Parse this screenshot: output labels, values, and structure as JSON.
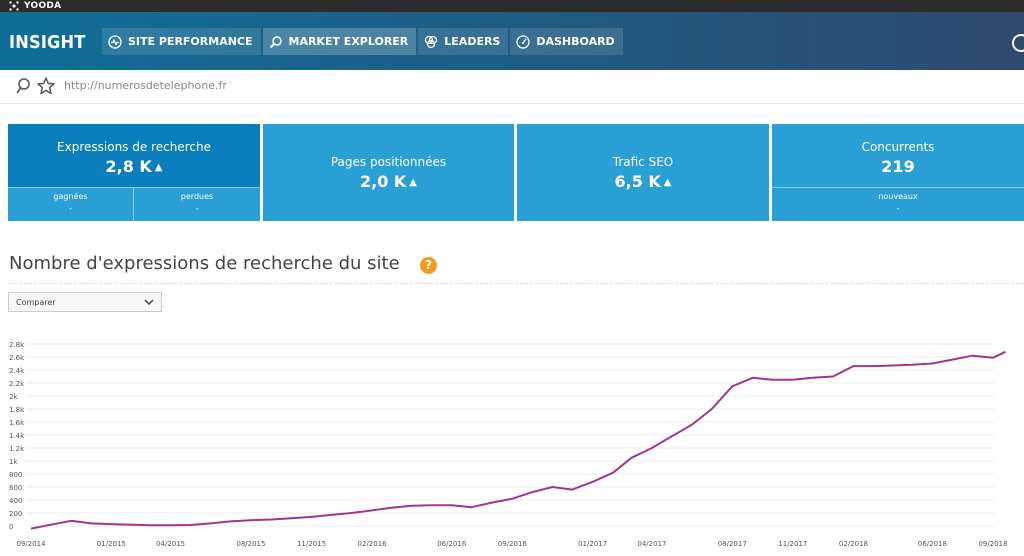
{
  "topbar": {
    "brand": "YOODA"
  },
  "header": {
    "app_title": "INSIGHT",
    "nav": [
      {
        "label": "SITE PERFORMANCE",
        "icon": "pulse-icon"
      },
      {
        "label": "MARKET EXPLORER",
        "icon": "magnifier-icon"
      },
      {
        "label": "LEADERS",
        "icon": "circles-icon"
      },
      {
        "label": "DASHBOARD",
        "icon": "gauge-icon"
      }
    ]
  },
  "urlbar": {
    "url": "http://numerosdetelephone.fr"
  },
  "kpis": [
    {
      "title": "Expressions de recherche",
      "value": "2,8 K",
      "sub": [
        {
          "label": "gagnées",
          "value": "-"
        },
        {
          "label": "perdues",
          "value": "-"
        }
      ]
    },
    {
      "title": "Pages positionnées",
      "value": "2,0 K"
    },
    {
      "title": "Trafic SEO",
      "value": "6,5 K"
    },
    {
      "title": "Concurrents",
      "value": "219",
      "sub": [
        {
          "label": "nouveaux",
          "value": "-"
        }
      ]
    }
  ],
  "trend_glyph": "▲",
  "section": {
    "title": "Nombre d'expressions de recherche du site",
    "help": "?"
  },
  "compare": {
    "label": "Comparer"
  },
  "colors": {
    "accent": "#2a9fd6",
    "accent_dark": "#0b7fbd",
    "line": "#a0368f",
    "help": "#f39c20"
  },
  "chart_data": {
    "type": "line",
    "y_ticks": [
      "0",
      "200",
      "400",
      "600",
      "800",
      "1k",
      "1.2k",
      "1.4k",
      "1.6k",
      "1.8k",
      "2k",
      "2.2k",
      "2.4k",
      "2.6k",
      "2.8k"
    ],
    "ylim": [
      0,
      2800
    ],
    "x_ticks": [
      "09/2014",
      "01/2015",
      "04/2015",
      "08/2015",
      "11/2015",
      "02/2016",
      "06/2016",
      "09/2016",
      "01/2017",
      "04/2017",
      "08/2017",
      "11/2017",
      "02/2018",
      "06/2018",
      "09/2018"
    ],
    "grid": true,
    "series": [
      {
        "x": [
          "2014-09-01",
          "2014-10-01",
          "2014-11-01",
          "2014-12-01",
          "2015-01-01",
          "2015-02-01",
          "2015-03-01",
          "2015-04-01",
          "2015-05-01",
          "2015-06-01",
          "2015-07-01",
          "2015-08-01",
          "2015-09-01",
          "2015-10-01",
          "2015-11-01",
          "2015-12-01",
          "2016-01-01",
          "2016-02-01",
          "2016-03-01",
          "2016-04-01",
          "2016-05-01",
          "2016-06-01",
          "2016-07-01",
          "2016-08-01",
          "2016-09-01",
          "2016-10-01",
          "2016-11-01",
          "2016-12-01",
          "2017-01-01",
          "2017-02-01",
          "2017-03-01",
          "2017-04-01",
          "2017-05-01",
          "2017-06-01",
          "2017-07-01",
          "2017-08-01",
          "2017-09-01",
          "2017-10-01",
          "2017-11-01",
          "2017-12-01",
          "2018-01-01",
          "2018-02-01",
          "2018-03-01",
          "2018-04-01",
          "2018-05-01",
          "2018-06-01",
          "2018-07-01",
          "2018-08-01",
          "2018-09-01",
          "2018-09-20"
        ],
        "y": [
          -40,
          20,
          80,
          40,
          30,
          20,
          10,
          10,
          15,
          40,
          70,
          90,
          100,
          120,
          140,
          170,
          200,
          240,
          280,
          310,
          320,
          320,
          290,
          360,
          420,
          520,
          600,
          560,
          680,
          820,
          1050,
          1200,
          1380,
          1560,
          1800,
          2150,
          2280,
          2250,
          2250,
          2280,
          2300,
          2460,
          2460,
          2470,
          2480,
          2500,
          2560,
          2620,
          2590,
          2680
        ]
      }
    ]
  }
}
